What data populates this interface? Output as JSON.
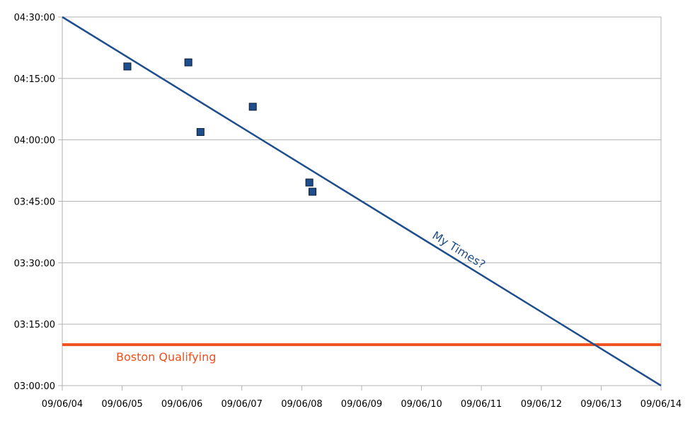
{
  "chart_data": {
    "type": "scatter",
    "title": "",
    "xlabel": "",
    "ylabel": "",
    "x_axis": {
      "type": "date",
      "min": "2004-09-06",
      "max": "2014-09-06",
      "ticks": [
        "2004-09-06",
        "2005-09-06",
        "2006-09-06",
        "2007-09-06",
        "2008-09-06",
        "2009-09-06",
        "2010-09-06",
        "2011-09-06",
        "2012-09-06",
        "2013-09-06",
        "2014-09-06"
      ],
      "tick_labels": [
        "09/06/04",
        "09/06/05",
        "09/06/06",
        "09/06/07",
        "09/06/08",
        "09/06/09",
        "09/06/10",
        "09/06/11",
        "09/06/12",
        "09/06/13",
        "09/06/14"
      ]
    },
    "y_axis": {
      "type": "duration",
      "min": "03:00:00",
      "max": "04:30:00",
      "ticks": [
        "03:00:00",
        "03:15:00",
        "03:30:00",
        "03:45:00",
        "04:00:00",
        "04:15:00",
        "04:30:00"
      ],
      "tick_labels": [
        "03:00:00",
        "03:15:00",
        "03:30:00",
        "03:45:00",
        "04:00:00",
        "04:15:00",
        "04:30:00"
      ]
    },
    "grid": {
      "horizontal": true,
      "vertical": false
    },
    "series": [
      {
        "kind": "points",
        "marker": "square",
        "color": "#1F4E8C",
        "points": [
          {
            "x": "2005-10-08",
            "y": "04:17:55"
          },
          {
            "x": "2006-10-15",
            "y": "04:18:55"
          },
          {
            "x": "2006-12-28",
            "y": "04:01:55"
          },
          {
            "x": "2007-11-12",
            "y": "04:08:05"
          },
          {
            "x": "2008-10-22",
            "y": "03:49:35"
          },
          {
            "x": "2008-11-10",
            "y": "03:47:20"
          }
        ]
      },
      {
        "kind": "trend-line",
        "name": "My Times?",
        "color": "#1F4E8C",
        "points": [
          {
            "x": "2004-09-06",
            "y": "04:30:00"
          },
          {
            "x": "2014-09-06",
            "y": "03:00:00"
          }
        ]
      },
      {
        "kind": "reference-line",
        "name": "Boston Qualifying",
        "color": "#F0501E",
        "y": "03:10:00"
      }
    ]
  }
}
